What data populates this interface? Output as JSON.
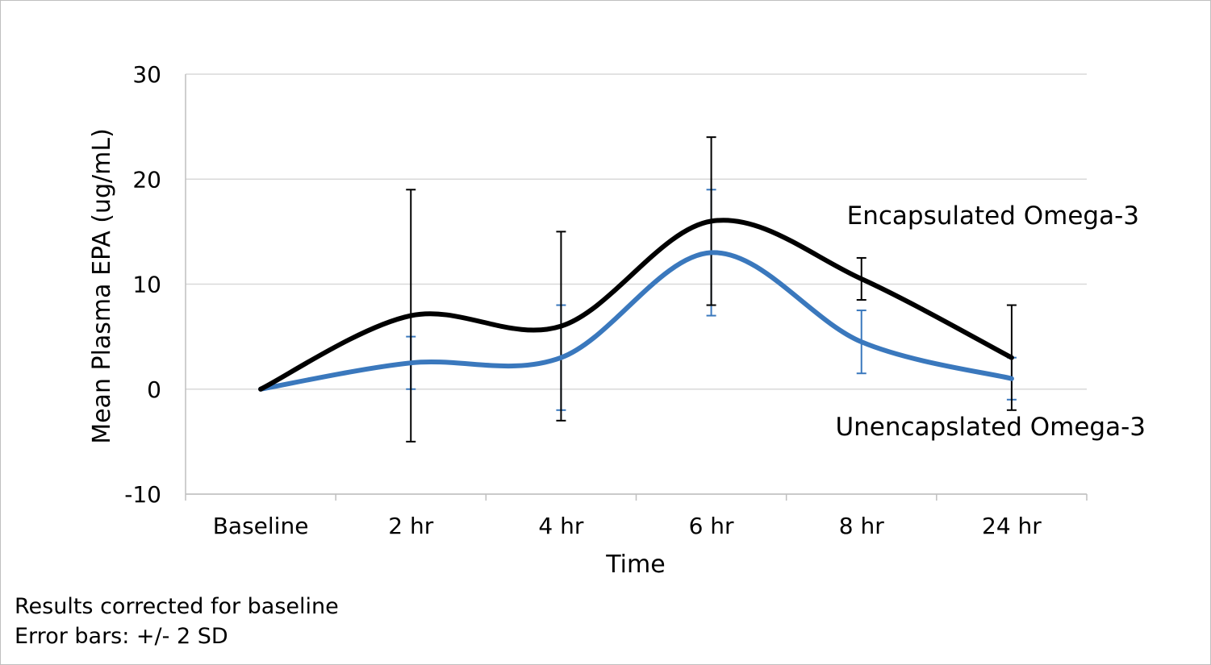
{
  "chart_data": {
    "type": "line",
    "xlabel": "Time",
    "ylabel": "Mean Plasma EPA (ug/mL)",
    "categories": [
      "Baseline",
      "2 hr",
      "4 hr",
      "6 hr",
      "8 hr",
      "24 hr"
    ],
    "ylim": [
      -10,
      30
    ],
    "yticks": [
      -10,
      0,
      10,
      20,
      30
    ],
    "grid": true,
    "smooth": true,
    "series": [
      {
        "name": "Encapsulated Omega-3",
        "color": "#000000",
        "values": [
          0,
          7,
          6,
          16,
          10.5,
          3
        ],
        "error_low": [
          null,
          -5,
          -3,
          8,
          8.5,
          -2
        ],
        "error_high": [
          null,
          19,
          15,
          24,
          12.5,
          8
        ]
      },
      {
        "name": "Unencapslated Omega-3",
        "color": "#3a78bd",
        "values": [
          0,
          2.5,
          3,
          13,
          4.5,
          1
        ],
        "error_low": [
          null,
          0,
          -2,
          7,
          1.5,
          -1
        ],
        "error_high": [
          null,
          5,
          8,
          19,
          7.5,
          3
        ]
      }
    ]
  },
  "notes": [
    "Results corrected for baseline",
    "Error bars: +/- 2 SD"
  ]
}
